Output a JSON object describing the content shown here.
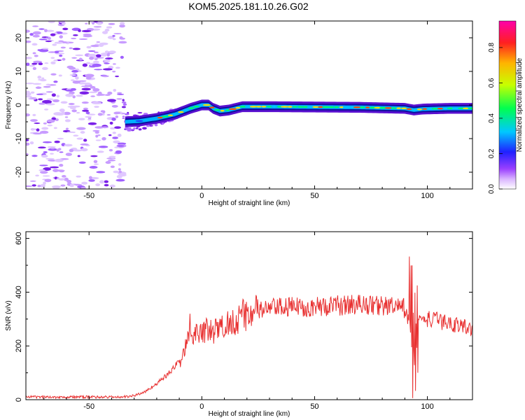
{
  "title": "KOM5.2025.181.10.26.G02",
  "chart_data": [
    {
      "type": "heatmap",
      "xlabel": "Height of straight line (km)",
      "ylabel": "Frequency (Hz)",
      "xlim": [
        -78,
        120
      ],
      "ylim": [
        -25,
        25
      ],
      "xticks": [
        -50,
        0,
        50,
        100
      ],
      "yticks": [
        -20,
        -10,
        0,
        10,
        20
      ],
      "colorbar": {
        "label": "Normalized spectral amplitude",
        "range": [
          0,
          0.95
        ],
        "ticks": [
          0.0,
          0.2,
          0.4,
          0.6,
          0.8
        ],
        "colors": [
          "#ffffff",
          "#c89cff",
          "#8a2be2",
          "#0000ff",
          "#00c8ff",
          "#00ff66",
          "#ccff00",
          "#ffb000",
          "#ff0000",
          "#ff00aa"
        ]
      },
      "ridge": {
        "description_points_x": [
          -34,
          -28,
          -20,
          -12,
          -5,
          0,
          3,
          5,
          8,
          12,
          18,
          30,
          50,
          70,
          90,
          94,
          98,
          110,
          120
        ],
        "description_points_y": [
          -5,
          -4.8,
          -4,
          -2.8,
          -1,
          0,
          0,
          -1,
          -1.8,
          -1.5,
          -0.5,
          -0.5,
          -0.6,
          -0.7,
          -1,
          -1.5,
          -1.2,
          -1,
          -1
        ]
      }
    },
    {
      "type": "line",
      "xlabel": "Height of straight line (km)",
      "ylabel": "SNR (v/v)",
      "xlim": [
        -78,
        120
      ],
      "ylim": [
        0,
        625
      ],
      "xticks": [
        -50,
        0,
        50,
        100
      ],
      "yticks": [
        0,
        200,
        400,
        600
      ],
      "color": "#e83030",
      "envelope_x": [
        -78,
        -40,
        -35,
        -30,
        -25,
        -20,
        -15,
        -10,
        -7,
        -5,
        0,
        5,
        10,
        15,
        20,
        30,
        40,
        50,
        60,
        70,
        80,
        90,
        92,
        93,
        94,
        95,
        96,
        100,
        110,
        120
      ],
      "envelope_y": [
        10,
        10,
        10,
        15,
        30,
        60,
        95,
        140,
        200,
        240,
        260,
        250,
        275,
        300,
        320,
        340,
        345,
        345,
        350,
        355,
        350,
        340,
        300,
        250,
        200,
        320,
        300,
        300,
        285,
        265
      ]
    }
  ]
}
